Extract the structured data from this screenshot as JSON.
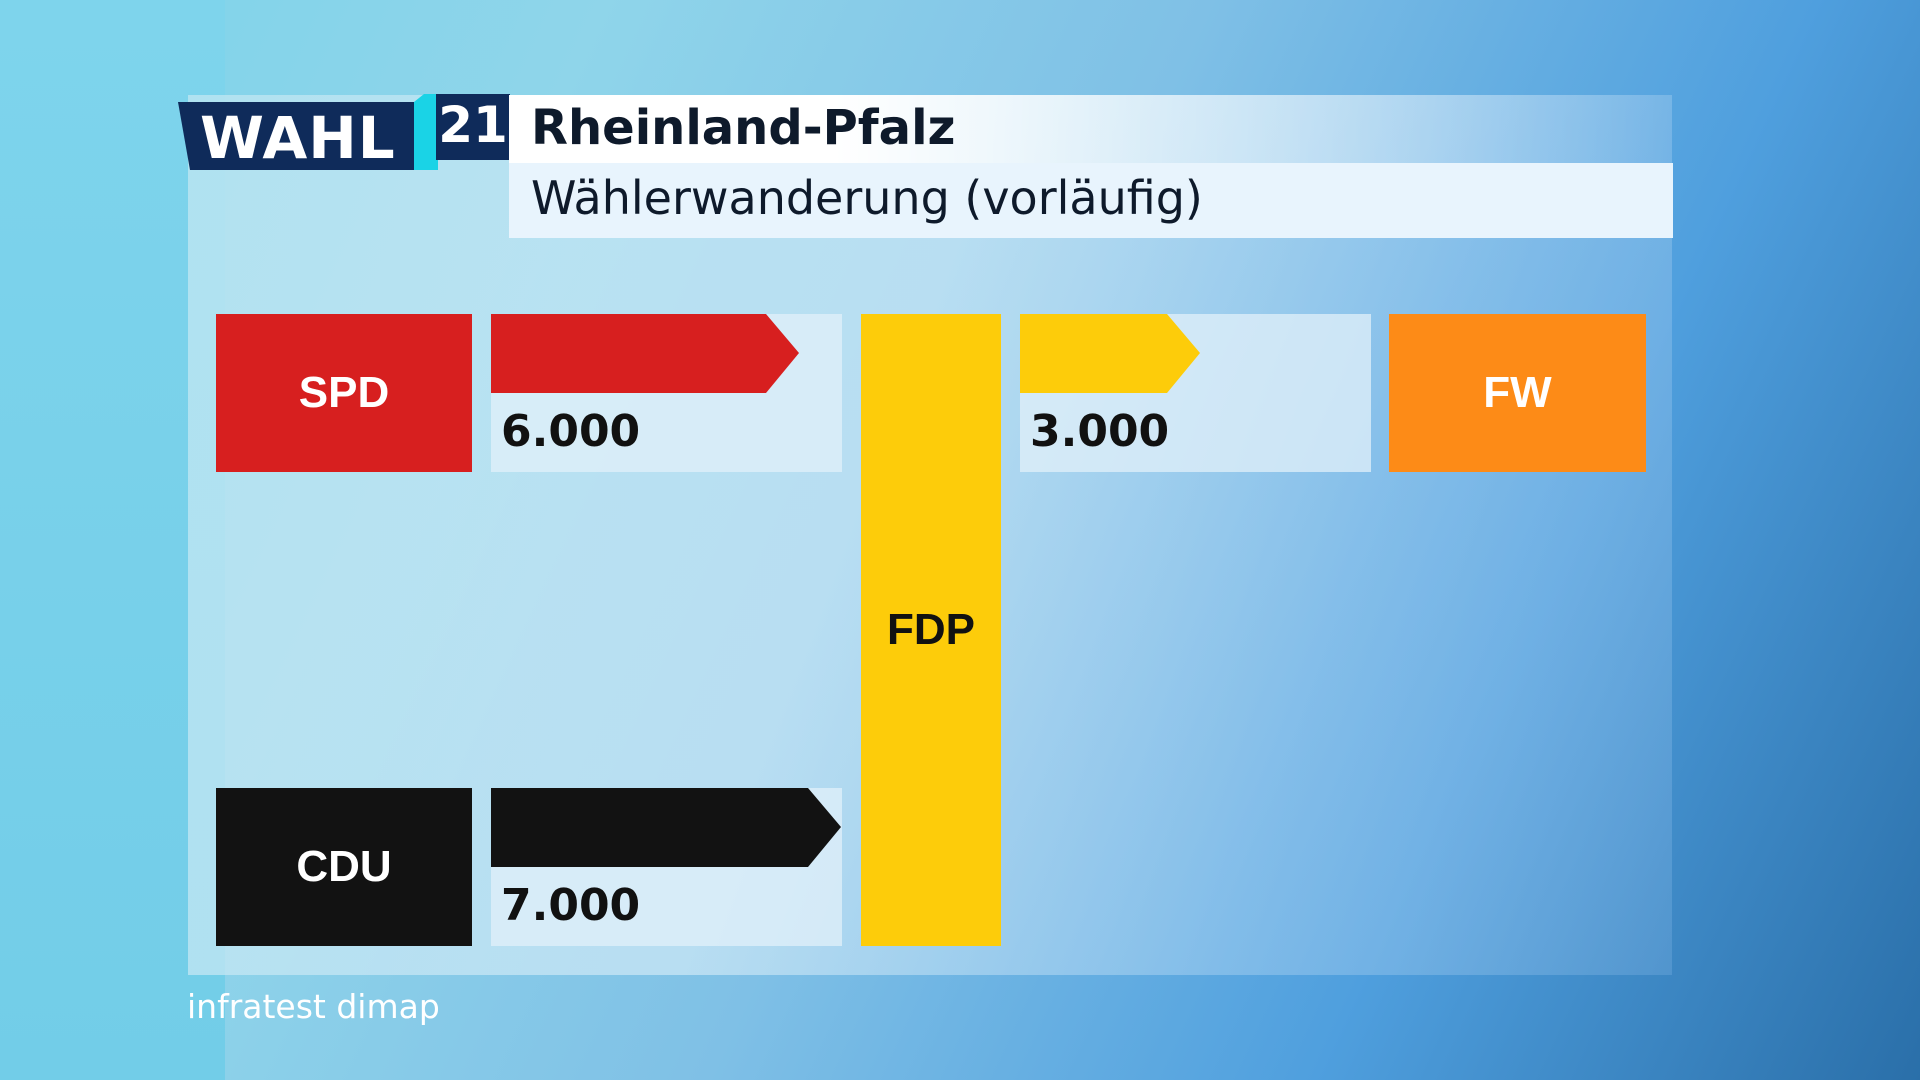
{
  "header": {
    "logo_word": "WAHL",
    "logo_year": "21",
    "title": "Rheinland-Pfalz",
    "subtitle": "Wählerwanderung (vorläufig)"
  },
  "colors": {
    "spd": "#d71f1f",
    "cdu": "#121212",
    "fdp": "#fdcc0a",
    "fw": "#fd8b17",
    "logo_navy": "#0f2b5a",
    "logo_cyan": "#1ad3e6"
  },
  "chart_data": {
    "type": "flow",
    "center_party": "FDP",
    "flows": [
      {
        "from": "SPD",
        "to": "FDP",
        "value": 6000,
        "label": "6.000"
      },
      {
        "from": "CDU",
        "to": "FDP",
        "value": 7000,
        "label": "7.000"
      },
      {
        "from": "FDP",
        "to": "FW",
        "value": 3000,
        "label": "3.000"
      }
    ],
    "parties": {
      "spd": "SPD",
      "cdu": "CDU",
      "fdp": "FDP",
      "fw": "FW"
    }
  },
  "source": "infratest dimap"
}
